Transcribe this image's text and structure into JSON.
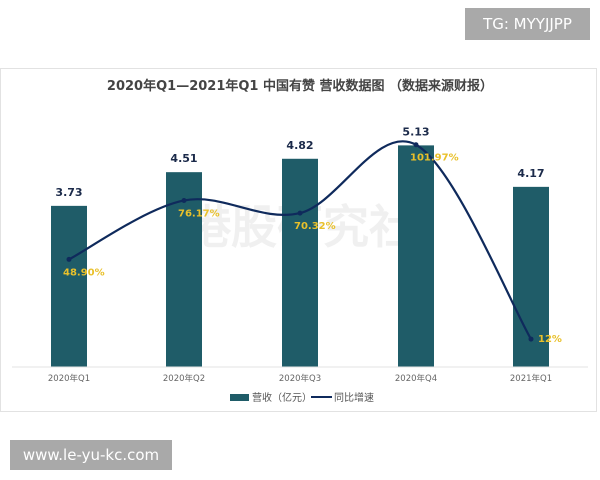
{
  "overlays": {
    "top_right": "TG: MYYJJPP",
    "bottom_left": "www.le-yu-kc.com"
  },
  "watermark": "港股研究社",
  "colors": {
    "bar": "#1f5c68",
    "line": "#0f2a5c",
    "rate_label": "#e9c02a",
    "value_label": "#1b2a4a"
  },
  "chart_data": {
    "type": "bar+line",
    "title": "2020年Q1—2021年Q1 中国有赞 营收数据图 （数据来源财报）",
    "categories": [
      "2020年Q1",
      "2020年Q2",
      "2020年Q3",
      "2020年Q4",
      "2021年Q1"
    ],
    "series": [
      {
        "name": "营收（亿元）",
        "type": "bar",
        "values": [
          3.73,
          4.51,
          4.82,
          5.13,
          4.17
        ],
        "labels": [
          "3.73",
          "4.51",
          "4.82",
          "5.13",
          "4.17"
        ]
      },
      {
        "name": "同比增速",
        "type": "line",
        "smooth": true,
        "values": [
          48.9,
          76.17,
          70.32,
          101.97,
          12
        ],
        "labels": [
          "48.90%",
          "76.17%",
          "70.32%",
          "101.97%",
          "12%"
        ]
      }
    ],
    "legend": "bottom",
    "grid": false
  }
}
